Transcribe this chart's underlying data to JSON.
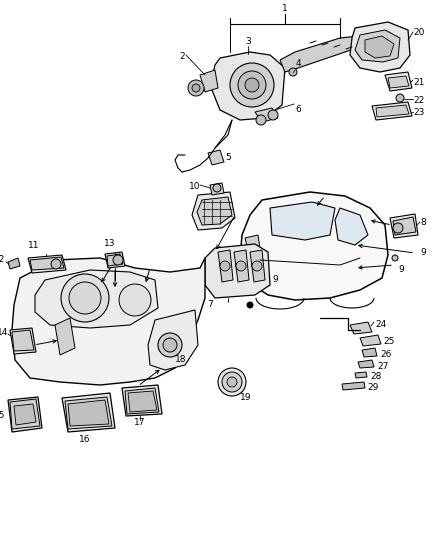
{
  "bg_color": "#ffffff",
  "fig_width": 4.38,
  "fig_height": 5.33,
  "dpi": 100,
  "lc": "#000000",
  "tc": "#000000",
  "fs": 6.5,
  "gray1": "#e8e8e8",
  "gray2": "#d0d0d0",
  "gray3": "#c0c0c0",
  "gray4": "#b0b0b0",
  "gray5": "#f0f0f0"
}
